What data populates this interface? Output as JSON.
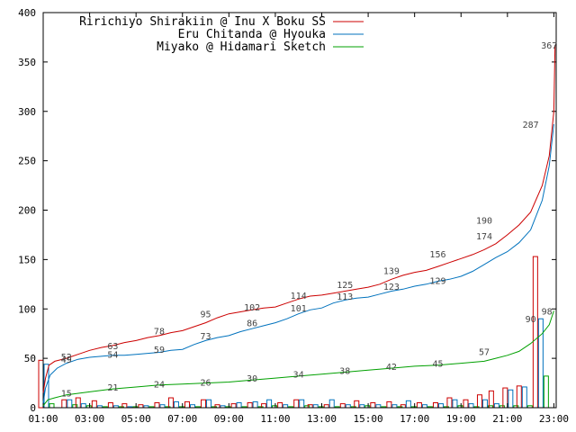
{
  "chart_data": {
    "type": "line",
    "title": "",
    "xlabel": "",
    "ylabel": "",
    "xlim": [
      1,
      23.1
    ],
    "ylim": [
      0,
      400
    ],
    "x_ticks": [
      "01:00",
      "03:00",
      "05:00",
      "07:00",
      "09:00",
      "11:00",
      "13:00",
      "15:00",
      "17:00",
      "19:00",
      "21:00",
      "23:00"
    ],
    "y_ticks": [
      "0",
      "50",
      "100",
      "150",
      "200",
      "250",
      "300",
      "350",
      "400"
    ],
    "grid": false,
    "legend_position": "top-left",
    "series": [
      {
        "name": "Ririchiyo Shirakiin @ Inu X Boku SS",
        "color": "#cc0000",
        "points": [
          [
            1.0,
            15
          ],
          [
            1.1,
            30
          ],
          [
            1.25,
            43
          ],
          [
            1.5,
            47
          ],
          [
            2.0,
            50
          ],
          [
            2.5,
            54
          ],
          [
            3.0,
            58
          ],
          [
            3.5,
            61
          ],
          [
            4.0,
            63
          ],
          [
            4.5,
            66
          ],
          [
            5.0,
            68
          ],
          [
            5.5,
            71
          ],
          [
            6.0,
            73
          ],
          [
            6.5,
            76
          ],
          [
            7.0,
            78
          ],
          [
            7.5,
            82
          ],
          [
            8.0,
            86
          ],
          [
            8.5,
            91
          ],
          [
            9.0,
            95
          ],
          [
            9.5,
            97
          ],
          [
            10.0,
            99
          ],
          [
            10.5,
            101
          ],
          [
            11.0,
            102
          ],
          [
            11.5,
            106
          ],
          [
            12.0,
            110
          ],
          [
            12.5,
            113
          ],
          [
            13.0,
            114
          ],
          [
            13.5,
            116
          ],
          [
            14.0,
            118
          ],
          [
            14.5,
            120
          ],
          [
            15.0,
            122
          ],
          [
            15.5,
            125
          ],
          [
            16.0,
            130
          ],
          [
            16.5,
            134
          ],
          [
            17.0,
            137
          ],
          [
            17.5,
            139
          ],
          [
            18.0,
            143
          ],
          [
            18.5,
            147
          ],
          [
            19.0,
            151
          ],
          [
            19.5,
            155
          ],
          [
            20.0,
            160
          ],
          [
            20.5,
            166
          ],
          [
            21.0,
            175
          ],
          [
            21.5,
            185
          ],
          [
            22.0,
            198
          ],
          [
            22.5,
            225
          ],
          [
            22.8,
            255
          ],
          [
            23.0,
            300
          ],
          [
            23.05,
            367
          ]
        ],
        "labels": [
          [
            2.0,
            52
          ],
          [
            4.0,
            63
          ],
          [
            6.0,
            78
          ],
          [
            8.0,
            95
          ],
          [
            10.0,
            102
          ],
          [
            12.0,
            114
          ],
          [
            14.0,
            125
          ],
          [
            16.0,
            139
          ],
          [
            18.0,
            156
          ],
          [
            20.0,
            190
          ],
          [
            22.0,
            287
          ],
          [
            22.8,
            367
          ]
        ]
      },
      {
        "name": "Eru Chitanda @ Hyouka",
        "color": "#0072bd",
        "points": [
          [
            1.0,
            5
          ],
          [
            1.1,
            20
          ],
          [
            1.3,
            33
          ],
          [
            1.6,
            40
          ],
          [
            2.0,
            45
          ],
          [
            2.5,
            49
          ],
          [
            3.0,
            51
          ],
          [
            3.5,
            52
          ],
          [
            4.0,
            53
          ],
          [
            4.5,
            53
          ],
          [
            5.0,
            54
          ],
          [
            5.5,
            55
          ],
          [
            6.0,
            56
          ],
          [
            6.5,
            58
          ],
          [
            7.0,
            59
          ],
          [
            7.5,
            64
          ],
          [
            8.0,
            68
          ],
          [
            8.5,
            71
          ],
          [
            9.0,
            73
          ],
          [
            9.5,
            77
          ],
          [
            10.0,
            80
          ],
          [
            10.5,
            83
          ],
          [
            11.0,
            86
          ],
          [
            11.5,
            90
          ],
          [
            12.0,
            95
          ],
          [
            12.5,
            99
          ],
          [
            13.0,
            101
          ],
          [
            13.5,
            106
          ],
          [
            14.0,
            109
          ],
          [
            14.5,
            111
          ],
          [
            15.0,
            112
          ],
          [
            15.5,
            115
          ],
          [
            16.0,
            118
          ],
          [
            16.5,
            120
          ],
          [
            17.0,
            123
          ],
          [
            17.5,
            125
          ],
          [
            18.0,
            128
          ],
          [
            18.5,
            130
          ],
          [
            19.0,
            133
          ],
          [
            19.5,
            138
          ],
          [
            20.0,
            145
          ],
          [
            20.5,
            152
          ],
          [
            21.0,
            158
          ],
          [
            21.5,
            167
          ],
          [
            22.0,
            180
          ],
          [
            22.5,
            210
          ],
          [
            22.8,
            245
          ],
          [
            23.0,
            287
          ]
        ],
        "labels": [
          [
            2.0,
            49
          ],
          [
            4.0,
            54
          ],
          [
            6.0,
            59
          ],
          [
            8.0,
            73
          ],
          [
            10.0,
            86
          ],
          [
            12.0,
            101
          ],
          [
            14.0,
            113
          ],
          [
            16.0,
            123
          ],
          [
            18.0,
            129
          ],
          [
            20.0,
            174
          ],
          [
            22.0,
            90
          ]
        ]
      },
      {
        "name": "Miyako @ Hidamari Sketch",
        "color": "#00a000",
        "points": [
          [
            1.0,
            2
          ],
          [
            1.2,
            8
          ],
          [
            1.5,
            10
          ],
          [
            2.0,
            13
          ],
          [
            3.0,
            16
          ],
          [
            4.0,
            19
          ],
          [
            5.0,
            21
          ],
          [
            6.0,
            23
          ],
          [
            7.0,
            24
          ],
          [
            8.0,
            25
          ],
          [
            9.0,
            26
          ],
          [
            10.0,
            28
          ],
          [
            11.0,
            30
          ],
          [
            12.0,
            32
          ],
          [
            13.0,
            34
          ],
          [
            14.0,
            36
          ],
          [
            15.0,
            38
          ],
          [
            16.0,
            40
          ],
          [
            17.0,
            42
          ],
          [
            18.0,
            43
          ],
          [
            19.0,
            45
          ],
          [
            20.0,
            47
          ],
          [
            20.5,
            50
          ],
          [
            21.0,
            53
          ],
          [
            21.5,
            57
          ],
          [
            22.0,
            65
          ],
          [
            22.5,
            75
          ],
          [
            22.8,
            84
          ],
          [
            23.0,
            98
          ]
        ],
        "labels": [
          [
            2.0,
            15
          ],
          [
            4.0,
            21
          ],
          [
            6.0,
            24
          ],
          [
            8.0,
            26
          ],
          [
            10.0,
            30
          ],
          [
            12.0,
            34
          ],
          [
            14.0,
            38
          ],
          [
            16.0,
            42
          ],
          [
            18.0,
            45
          ],
          [
            20.0,
            57
          ],
          [
            22.7,
            98
          ]
        ]
      }
    ],
    "bars": {
      "series_order": [
        "red",
        "blue",
        "green"
      ],
      "values": [
        {
          "x": 1.0,
          "red": 48,
          "blue": 44,
          "green": 4
        },
        {
          "x": 2.0,
          "red": 8,
          "blue": 8,
          "green": 3
        },
        {
          "x": 2.6,
          "red": 10,
          "blue": 4,
          "green": 2
        },
        {
          "x": 3.3,
          "red": 7,
          "blue": 2,
          "green": 1
        },
        {
          "x": 4.0,
          "red": 5,
          "blue": 2,
          "green": 1
        },
        {
          "x": 4.6,
          "red": 4,
          "blue": 1,
          "green": 1
        },
        {
          "x": 5.3,
          "red": 3,
          "blue": 2,
          "green": 1
        },
        {
          "x": 6.0,
          "red": 5,
          "blue": 3,
          "green": 1
        },
        {
          "x": 6.6,
          "red": 10,
          "blue": 6,
          "green": 1
        },
        {
          "x": 7.3,
          "red": 6,
          "blue": 3,
          "green": 1
        },
        {
          "x": 8.0,
          "red": 8,
          "blue": 8,
          "green": 1
        },
        {
          "x": 8.6,
          "red": 3,
          "blue": 2,
          "green": 1
        },
        {
          "x": 9.3,
          "red": 4,
          "blue": 5,
          "green": 1
        },
        {
          "x": 10.0,
          "red": 5,
          "blue": 6,
          "green": 1
        },
        {
          "x": 10.6,
          "red": 4,
          "blue": 8,
          "green": 2
        },
        {
          "x": 11.3,
          "red": 5,
          "blue": 3,
          "green": 1
        },
        {
          "x": 12.0,
          "red": 8,
          "blue": 8,
          "green": 2
        },
        {
          "x": 12.6,
          "red": 3,
          "blue": 3,
          "green": 1
        },
        {
          "x": 13.3,
          "red": 3,
          "blue": 8,
          "green": 1
        },
        {
          "x": 14.0,
          "red": 4,
          "blue": 3,
          "green": 1
        },
        {
          "x": 14.6,
          "red": 7,
          "blue": 3,
          "green": 2
        },
        {
          "x": 15.3,
          "red": 5,
          "blue": 3,
          "green": 1
        },
        {
          "x": 16.0,
          "red": 6,
          "blue": 3,
          "green": 1
        },
        {
          "x": 16.6,
          "red": 3,
          "blue": 7,
          "green": 1
        },
        {
          "x": 17.3,
          "red": 5,
          "blue": 3,
          "green": 1
        },
        {
          "x": 18.0,
          "red": 5,
          "blue": 4,
          "green": 1
        },
        {
          "x": 18.6,
          "red": 10,
          "blue": 8,
          "green": 2
        },
        {
          "x": 19.3,
          "red": 8,
          "blue": 4,
          "green": 1
        },
        {
          "x": 19.9,
          "red": 13,
          "blue": 8,
          "green": 2
        },
        {
          "x": 20.4,
          "red": 17,
          "blue": 4,
          "green": 2
        },
        {
          "x": 21.0,
          "red": 20,
          "blue": 18,
          "green": 2
        },
        {
          "x": 21.6,
          "red": 22,
          "blue": 21,
          "green": 2
        },
        {
          "x": 22.3,
          "red": 153,
          "blue": 90,
          "green": 32
        }
      ]
    }
  }
}
